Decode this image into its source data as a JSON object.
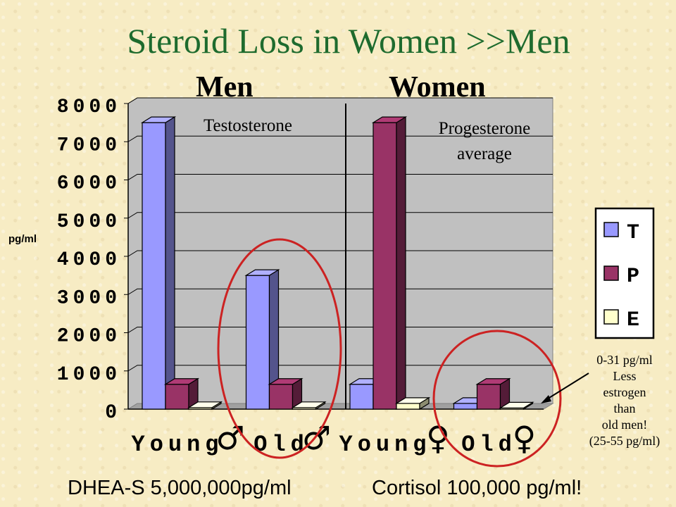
{
  "slide": {
    "title": "Steroid Loss in Women >>Men",
    "group_men": "Men",
    "group_women": "Women",
    "ylabel": "pg/ml",
    "footer_dhea": "DHEA-S 5,000,000pg/ml",
    "footer_cortisol": "Cortisol 100,000 pg/ml!",
    "annotation_testosterone": "Testosterone",
    "annotation_progesterone": [
      "Progesterone",
      "average"
    ],
    "estrogen_note": [
      "0-31 pg/ml",
      "Less",
      "estrogen",
      "than",
      "old men!",
      "(25-55 pg/ml)"
    ]
  },
  "chart_data": {
    "type": "bar",
    "style": "3d-clustered",
    "categories": [
      "Young",
      "Old",
      "Young",
      "Old"
    ],
    "category_symbols": [
      "♂",
      "♂",
      "♀",
      "♀"
    ],
    "series": [
      {
        "name": "T",
        "values": [
          7500,
          3500,
          650,
          150
        ]
      },
      {
        "name": "P",
        "values": [
          650,
          650,
          7500,
          650
        ]
      },
      {
        "name": "E",
        "values": [
          40,
          40,
          150,
          30
        ]
      }
    ],
    "ylim": [
      0,
      8000
    ],
    "yticks": [
      "0",
      "1000",
      "2000",
      "3000",
      "4000",
      "5000",
      "6000",
      "7000",
      "8000"
    ],
    "grid": true,
    "legend": "right",
    "colors": {
      "T": "#9999ff",
      "P": "#993366",
      "E": "#ffffcc"
    },
    "highlight_color": "#cc2222"
  }
}
